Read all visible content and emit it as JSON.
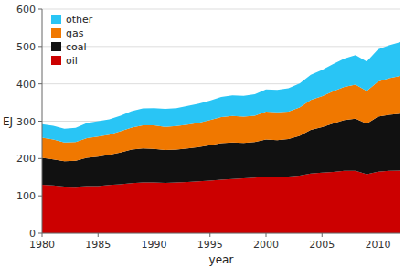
{
  "chart_data": {
    "type": "area",
    "stacked": true,
    "xlabel": "year",
    "ylabel": "EJ",
    "x": [
      1980,
      1981,
      1982,
      1983,
      1984,
      1985,
      1986,
      1987,
      1988,
      1989,
      1990,
      1991,
      1992,
      1993,
      1994,
      1995,
      1996,
      1997,
      1998,
      1999,
      2000,
      2001,
      2002,
      2003,
      2004,
      2005,
      2006,
      2007,
      2008,
      2009,
      2010,
      2011,
      2012
    ],
    "series": [
      {
        "name": "oil",
        "color": "#cc0000",
        "values": [
          130,
          128,
          125,
          124,
          126,
          126,
          129,
          131,
          134,
          136,
          136,
          135,
          136,
          137,
          139,
          141,
          143,
          145,
          147,
          149,
          152,
          151,
          152,
          154,
          160,
          162,
          164,
          167,
          167,
          158,
          165,
          167,
          168
        ]
      },
      {
        "name": "coal",
        "color": "#111111",
        "values": [
          72,
          70,
          68,
          70,
          76,
          79,
          81,
          85,
          90,
          91,
          90,
          88,
          88,
          90,
          92,
          95,
          98,
          98,
          95,
          95,
          99,
          98,
          100,
          107,
          117,
          122,
          130,
          136,
          140,
          135,
          147,
          150,
          152
        ]
      },
      {
        "name": "gas",
        "color": "#f07800",
        "values": [
          54,
          53,
          50,
          50,
          53,
          54,
          54,
          57,
          59,
          62,
          63,
          62,
          63,
          64,
          65,
          67,
          70,
          71,
          70,
          71,
          75,
          75,
          74,
          76,
          80,
          83,
          86,
          89,
          91,
          88,
          94,
          98,
          101
        ]
      },
      {
        "name": "other",
        "color": "#29c5f5",
        "values": [
          36,
          37,
          37,
          38,
          40,
          41,
          41,
          42,
          44,
          45,
          46,
          48,
          48,
          50,
          51,
          52,
          54,
          55,
          56,
          57,
          59,
          60,
          62,
          64,
          67,
          70,
          73,
          76,
          79,
          79,
          86,
          88,
          91
        ]
      }
    ],
    "xlim": [
      1980,
      2012
    ],
    "ylim": [
      0,
      600
    ],
    "xticks": [
      1980,
      1985,
      1990,
      1995,
      2000,
      2005,
      2010
    ],
    "yticks": [
      0,
      100,
      200,
      300,
      400,
      500,
      600
    ],
    "grid": true,
    "legend": "top-left"
  }
}
